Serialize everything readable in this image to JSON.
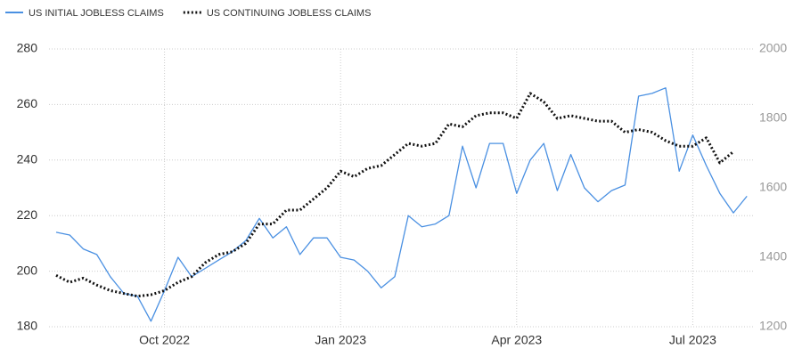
{
  "chart_data": {
    "type": "line",
    "categories": [
      null,
      null,
      null,
      null,
      null,
      null,
      null,
      null,
      "Oct 2022",
      null,
      null,
      null,
      null,
      null,
      null,
      null,
      null,
      null,
      null,
      null,
      null,
      "Jan 2023",
      null,
      null,
      null,
      null,
      null,
      null,
      null,
      null,
      null,
      null,
      null,
      null,
      "Apr 2023",
      null,
      null,
      null,
      null,
      null,
      null,
      null,
      null,
      null,
      null,
      null,
      null,
      "Jul 2023",
      null,
      null,
      null,
      null
    ],
    "series": [
      {
        "name": "US INITIAL JOBLESS CLAIMS",
        "color": "#4a90e2",
        "style": "solid",
        "values": [
          214,
          213,
          208,
          206,
          198,
          192,
          191,
          182,
          193,
          205,
          198,
          201,
          204,
          207,
          211,
          219,
          212,
          216,
          206,
          212,
          212,
          205,
          204,
          200,
          194,
          198,
          220,
          216,
          217,
          220,
          245,
          230,
          246,
          246,
          228,
          240,
          246,
          229,
          242,
          230,
          225,
          229,
          231,
          263,
          264,
          266,
          236,
          249,
          238,
          228,
          221,
          227
        ]
      },
      {
        "name": "US CONTINUING JOBLESS CLAIMS",
        "color": "#111111",
        "style": "dotted",
        "axis": "y2",
        "values": [
          1348,
          1328,
          1340,
          1320,
          1304,
          1296,
          1288,
          1292,
          1304,
          1328,
          1344,
          1384,
          1408,
          1416,
          1440,
          1496,
          1496,
          1536,
          1536,
          1568,
          1600,
          1648,
          1632,
          1656,
          1664,
          1696,
          1728,
          1720,
          1728,
          1784,
          1776,
          1808,
          1816,
          1816,
          1800,
          1872,
          1848,
          1800,
          1808,
          1800,
          1792,
          1792,
          1760,
          1768,
          1760,
          1736,
          1720,
          1720,
          1744,
          1672,
          1704,
          null
        ]
      }
    ],
    "ylim": [
      180,
      280
    ],
    "yticks": [
      180,
      200,
      220,
      240,
      260,
      280
    ],
    "y2lim": [
      1200,
      2000
    ],
    "y2ticks": [
      1200,
      1400,
      1600,
      1800,
      2000
    ],
    "grid": true
  }
}
